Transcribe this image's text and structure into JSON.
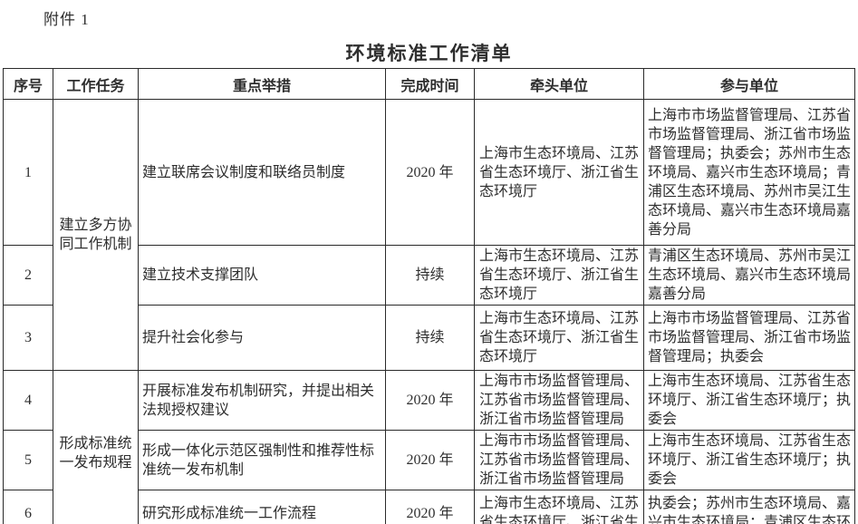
{
  "attachment_label": "附件 1",
  "title": "环境标准工作清单",
  "table": {
    "headers": [
      "序号",
      "工作任务",
      "重点举措",
      "完成时间",
      "牵头单位",
      "参与单位"
    ],
    "task_groups": [
      {
        "label": "建立多方协同工作机制"
      },
      {
        "label": "形成标准统一发布规程"
      }
    ],
    "rows": [
      {
        "no": "1",
        "measure": "建立联席会议制度和联络员制度",
        "deadline": "2020 年",
        "lead": "上海市生态环境局、江苏省生态环境厅、浙江省生态环境厅",
        "participants": "上海市市场监督管理局、江苏省市场监督管理局、浙江省市场监督管理局；执委会；苏州市生态环境局、嘉兴市生态环境局；青浦区生态环境局、苏州市吴江生态环境局、嘉兴市生态环境局嘉善分局"
      },
      {
        "no": "2",
        "measure": "建立技术支撑团队",
        "deadline": "持续",
        "lead": "上海市生态环境局、江苏省生态环境厅、浙江省生态环境厅",
        "participants": "青浦区生态环境局、苏州市吴江生态环境局、嘉兴市生态环境局嘉善分局"
      },
      {
        "no": "3",
        "measure": "提升社会化参与",
        "deadline": "持续",
        "lead": "上海市生态环境局、江苏省生态环境厅、浙江省生态环境厅",
        "participants": "上海市市场监督管理局、江苏省市场监督管理局、浙江省市场监督管理局；执委会"
      },
      {
        "no": "4",
        "measure": "开展标准发布机制研究，并提出相关法规授权建议",
        "deadline": "2020 年",
        "lead": "上海市市场监督管理局、江苏省市场监督管理局、浙江省市场监督管理局",
        "participants": "上海市生态环境局、江苏省生态环境厅、浙江省生态环境厅；执委会"
      },
      {
        "no": "5",
        "measure": "形成一体化示范区强制性和推荐性标准统一发布机制",
        "deadline": "2020 年",
        "lead": "上海市市场监督管理局、江苏省市场监督管理局、浙江省市场监督管理局",
        "participants": "上海市生态环境局、江苏省生态环境厅、浙江省生态环境厅；执委会"
      },
      {
        "no": "6",
        "measure": "研究形成标准统一工作流程",
        "deadline": "2020 年",
        "lead": "上海市生态环境局、江苏省生态环境厅、浙江省生",
        "participants": "执委会；苏州市生态环境局、嘉兴市生态环境局；青浦区生态环"
      }
    ]
  }
}
